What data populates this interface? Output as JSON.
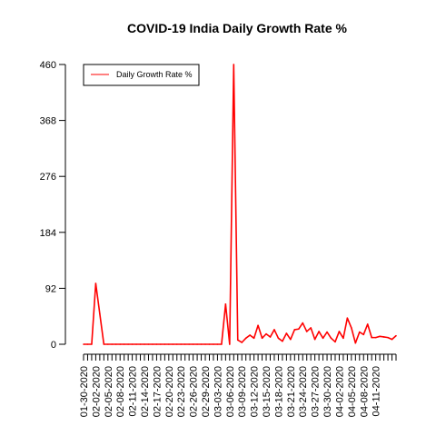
{
  "chart_data": {
    "type": "line",
    "title": "COVID-19 India Daily Growth Rate %",
    "xlabel": "",
    "ylabel": "",
    "y_ticks": [
      "0",
      "92",
      "184",
      "276",
      "368",
      "460"
    ],
    "ylim": [
      0,
      460
    ],
    "x_tick_labels": [
      "01-30-2020",
      "02-02-2020",
      "02-05-2020",
      "02-08-2020",
      "02-11-2020",
      "02-14-2020",
      "02-17-2020",
      "02-20-2020",
      "02-23-2020",
      "02-26-2020",
      "02-29-2020",
      "03-03-2020",
      "03-06-2020",
      "03-09-2020",
      "03-12-2020",
      "03-15-2020",
      "03-18-2020",
      "03-21-2020",
      "03-24-2020",
      "03-27-2020",
      "03-30-2020",
      "04-02-2020",
      "04-05-2020",
      "04-08-2020",
      "04-11-2020"
    ],
    "x_start": "01-30-2020",
    "legend": {
      "position": "top-left",
      "entries": [
        "Daily Growth Rate %"
      ]
    },
    "series": [
      {
        "name": "Daily Growth Rate %",
        "color": "#ff0000",
        "values": [
          0,
          0,
          0,
          100,
          50,
          0,
          0,
          0,
          0,
          0,
          0,
          0,
          0,
          0,
          0,
          0,
          0,
          0,
          0,
          0,
          0,
          0,
          0,
          0,
          0,
          0,
          0,
          0,
          0,
          0,
          0,
          0,
          0,
          0,
          0,
          66,
          0,
          460,
          7,
          3,
          10,
          15,
          10,
          31,
          10,
          17,
          12,
          24,
          10,
          5,
          18,
          8,
          24,
          25,
          35,
          21,
          27,
          8,
          21,
          10,
          20,
          10,
          4,
          21,
          10,
          43,
          27,
          2,
          20,
          16,
          33,
          11,
          11,
          13,
          12,
          11,
          8,
          14
        ]
      }
    ]
  }
}
